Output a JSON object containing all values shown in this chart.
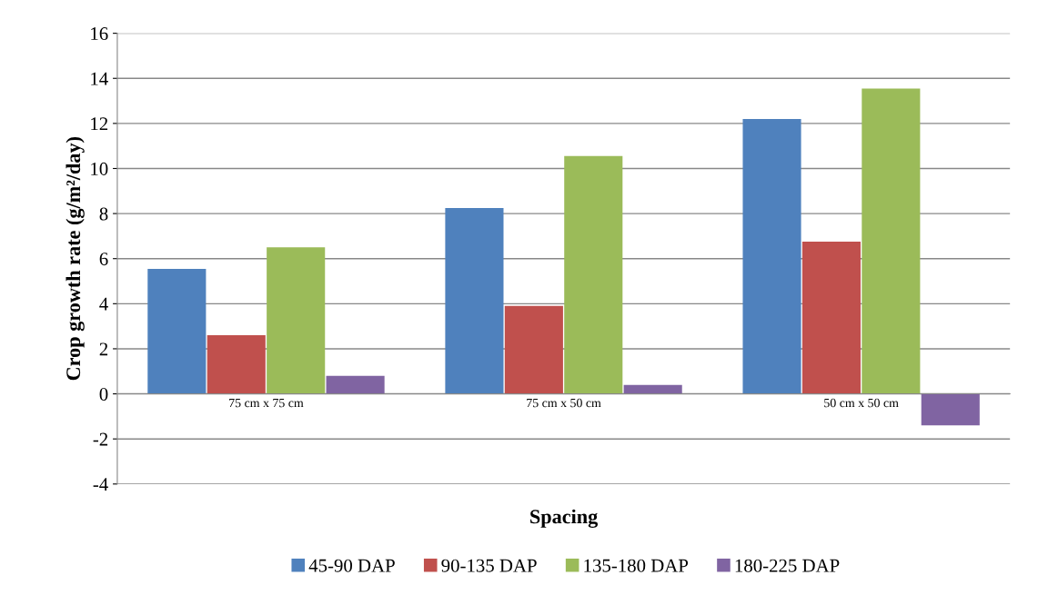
{
  "chart_data": {
    "type": "bar",
    "xlabel": "Spacing",
    "ylabel": "Crop growth rate (g/m²/day)",
    "categories": [
      "75 cm x 75 cm",
      "75 cm x 50 cm",
      "50 cm x 50 cm"
    ],
    "series": [
      {
        "name": "45-90 DAP",
        "color": "#4f81bd",
        "values": [
          5.55,
          8.25,
          12.2
        ]
      },
      {
        "name": "90-135 DAP",
        "color": "#c0504d",
        "values": [
          2.6,
          3.9,
          6.75
        ]
      },
      {
        "name": "135-180 DAP",
        "color": "#9bbb59",
        "values": [
          6.5,
          10.55,
          13.55
        ]
      },
      {
        "name": "180-225 DAP",
        "color": "#8064a2",
        "values": [
          0.8,
          0.4,
          -1.4
        ]
      }
    ],
    "ylim": [
      -4,
      16
    ],
    "yticks": [
      -4,
      -2,
      0,
      2,
      4,
      6,
      8,
      10,
      12,
      14,
      16
    ],
    "grid": "y",
    "legend": "bottom"
  }
}
